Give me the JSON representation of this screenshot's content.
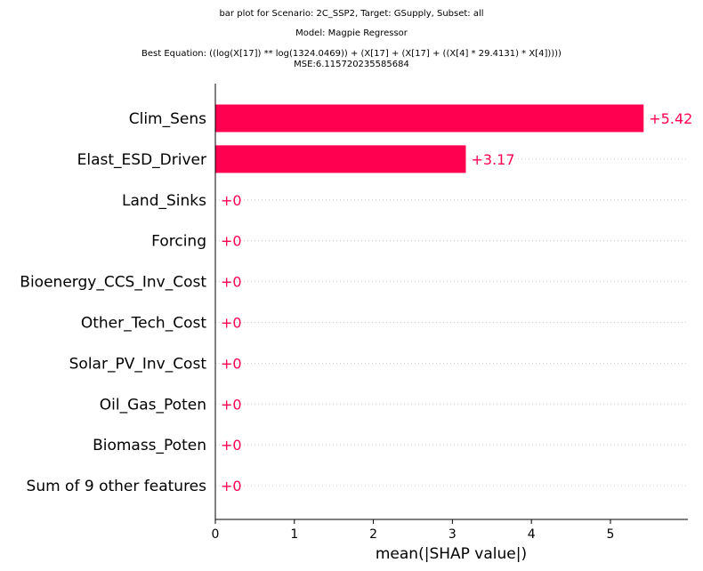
{
  "chart_data": {
    "type": "bar",
    "orientation": "horizontal",
    "title_lines": [
      "bar plot for Scenario: 2C_SSP2, Target: GSupply, Subset: all",
      "Model: Magpie Regressor",
      "Best Equation: ((log(X[17]) ** log(1324.0469)) + (X[17] + (X[17] + ((X[4] * 29.4131) * X[4]))))",
      "MSE:6.115720235585684"
    ],
    "categories": [
      "Clim_Sens",
      "Elast_ESD_Driver",
      "Land_Sinks",
      "Forcing",
      "Bioenergy_CCS_Inv_Cost",
      "Other_Tech_Cost",
      "Solar_PV_Inv_Cost",
      "Oil_Gas_Poten",
      "Biomass_Poten",
      "Sum of 9 other features"
    ],
    "values": [
      5.42,
      3.17,
      0,
      0,
      0,
      0,
      0,
      0,
      0,
      0
    ],
    "value_labels": [
      "+5.42",
      "+3.17",
      "+0",
      "+0",
      "+0",
      "+0",
      "+0",
      "+0",
      "+0",
      "+0"
    ],
    "xlabel": "mean(|SHAP value|)",
    "ylabel": "",
    "xlim": [
      0,
      5.98
    ],
    "xticks": [
      "0",
      "1",
      "2",
      "3",
      "4",
      "5"
    ],
    "grid": "dotted horizontal row guides",
    "bar_color": "#ff0051"
  }
}
